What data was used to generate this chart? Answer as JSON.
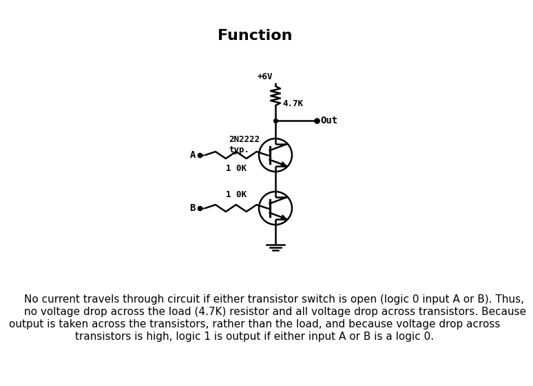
{
  "title": "Function",
  "title_fontsize": 16,
  "title_fontweight": "bold",
  "bg_color": "#ffffff",
  "line_color": "#000000",
  "line_width": 1.8,
  "body_text_line1": "No current travels through circuit if either transistor switch is open (logic 0 input A or B). Thus,",
  "body_text_line2": "no voltage drop across the load (4.7K) resistor and all voltage drop across transistors. Because",
  "body_text_line3": "output is taken across the transistors, rather than the load, and because voltage drop across",
  "body_text_line4": "transistors is high, logic 1 is output if either input A or B is a logic 0.",
  "body_fontsize": 11.0,
  "vcc_label": "+6V",
  "r_load_label": "4.7K",
  "out_label": "Out",
  "q_label_1": "2N2222",
  "q_label_2": "typ.",
  "rA_label": "1 0K",
  "rB_label": "1 0K",
  "labelA": "A",
  "labelB": "B"
}
